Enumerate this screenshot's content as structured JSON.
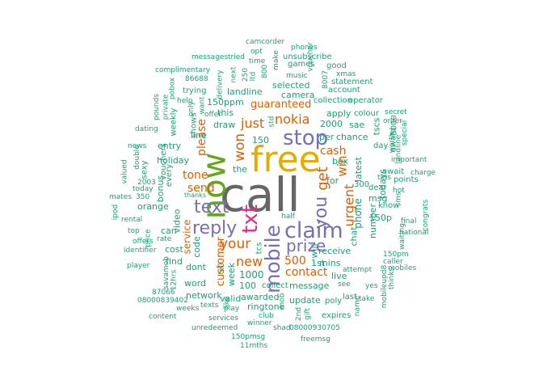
{
  "palette": {
    "xs": "#1b9e77",
    "sm": "#d95f02",
    "md": "#7570b3",
    "lg": "#e7298a",
    "xl": "#66a61e",
    "xxl": "#e6ab02",
    "top": "#666666"
  },
  "words": [
    {
      "text": "call",
      "tier": "top"
    },
    {
      "text": "free",
      "tier": "xxl"
    },
    {
      "text": "now",
      "tier": "xl"
    },
    {
      "text": "txt",
      "tier": "lg"
    },
    {
      "text": "claim",
      "tier": "md"
    },
    {
      "text": "mobile",
      "tier": "md"
    },
    {
      "text": "stop",
      "tier": "md"
    },
    {
      "text": "reply",
      "tier": "md"
    },
    {
      "text": "text",
      "tier": "md"
    },
    {
      "text": "prize",
      "tier": "md"
    },
    {
      "text": "you",
      "tier": "md"
    },
    {
      "text": "get",
      "tier": "sm"
    },
    {
      "text": "your",
      "tier": "sm"
    },
    {
      "text": "won",
      "tier": "sm"
    },
    {
      "text": "nokia",
      "tier": "sm"
    },
    {
      "text": "just",
      "tier": "sm"
    },
    {
      "text": "urgent",
      "tier": "sm"
    },
    {
      "text": "new",
      "tier": "sm"
    },
    {
      "text": "win",
      "tier": "sm"
    },
    {
      "text": "cash",
      "tier": "sm"
    },
    {
      "text": "send",
      "tier": "sm"
    },
    {
      "text": "tone",
      "tier": "sm"
    },
    {
      "text": "please",
      "tier": "sm"
    },
    {
      "text": "customer",
      "tier": "sm"
    },
    {
      "text": "contact",
      "tier": "sm"
    },
    {
      "text": "500",
      "tier": "sm"
    },
    {
      "text": "guaranteed",
      "tier": "sm"
    },
    {
      "text": "service",
      "tier": "sm"
    },
    {
      "text": "1000",
      "tier": "xs"
    },
    {
      "text": "100",
      "tier": "xs"
    },
    {
      "text": "message",
      "tier": "xs"
    },
    {
      "text": "phone",
      "tier": "xs"
    },
    {
      "text": "chat",
      "tier": "xs"
    },
    {
      "text": "latest",
      "tier": "xs"
    },
    {
      "text": "draw",
      "tier": "xs"
    },
    {
      "text": "week",
      "tier": "xs"
    },
    {
      "text": "150",
      "tier": "xs"
    },
    {
      "text": "2000",
      "tier": "xs"
    },
    {
      "text": "per",
      "tier": "xs"
    },
    {
      "text": "apply",
      "tier": "xs"
    },
    {
      "text": "camera",
      "tier": "xs"
    },
    {
      "text": "selected",
      "tier": "xs"
    },
    {
      "text": "landline",
      "tier": "xs"
    },
    {
      "text": "150ppm",
      "tier": "xs"
    },
    {
      "text": "this",
      "tier": "xs"
    },
    {
      "text": "line",
      "tier": "xs"
    },
    {
      "text": "shows",
      "tier": "xs"
    },
    {
      "text": "holiday",
      "tier": "xs"
    },
    {
      "text": "entry",
      "tier": "xs"
    },
    {
      "text": "bonus",
      "tier": "xs"
    },
    {
      "text": "orange",
      "tier": "xs"
    },
    {
      "text": "video",
      "tier": "xs"
    },
    {
      "text": "can",
      "tier": "xs"
    },
    {
      "text": "cost",
      "tier": "xs"
    },
    {
      "text": "find",
      "tier": "xs"
    },
    {
      "text": "code",
      "tier": "xs"
    },
    {
      "text": "dont",
      "tier": "xs"
    },
    {
      "text": "word",
      "tier": "xs"
    },
    {
      "text": "network",
      "tier": "xs"
    },
    {
      "text": "valid",
      "tier": "xs"
    },
    {
      "text": "awarded",
      "tier": "xs"
    },
    {
      "text": "collect",
      "tier": "xs"
    },
    {
      "text": "ringtone",
      "tier": "xs"
    },
    {
      "text": "update",
      "tier": "xs"
    },
    {
      "text": "mins",
      "tier": "xs"
    },
    {
      "text": "receive",
      "tier": "xs"
    },
    {
      "text": "1st",
      "tier": "xs"
    },
    {
      "text": "live",
      "tier": "xs"
    },
    {
      "text": "tcs",
      "tier": "xs"
    },
    {
      "text": "the",
      "tier": "xs"
    },
    {
      "text": "msg",
      "tier": "xs"
    },
    {
      "text": "box",
      "tier": "xs"
    },
    {
      "text": "chance",
      "tier": "xs"
    },
    {
      "text": "sae",
      "tier": "xs"
    },
    {
      "text": "day",
      "tier": "xs"
    },
    {
      "text": "150p",
      "tier": "xs"
    },
    {
      "text": "know",
      "tier": "xs"
    },
    {
      "text": "todays",
      "tier": "xs"
    },
    {
      "text": "award",
      "tier": "xs"
    },
    {
      "text": "5000",
      "tier": "xs"
    },
    {
      "text": "for",
      "tier": "xs"
    },
    {
      "text": "will",
      "tier": "xs"
    },
    {
      "text": "number",
      "tier": "xs"
    },
    {
      "text": "tscs",
      "tier": "xs"
    },
    {
      "text": "await",
      "tier": "xs"
    },
    {
      "text": "points",
      "tier": "xs"
    },
    {
      "text": "dear",
      "tier": "xs"
    },
    {
      "text": "300",
      "tier": "xs"
    },
    {
      "text": "statement",
      "tier": "xs"
    },
    {
      "text": "xmas",
      "tier": "xs"
    },
    {
      "text": "collection",
      "tier": "xs"
    },
    {
      "text": "operator",
      "tier": "xs"
    },
    {
      "text": "colour",
      "tier": "xs"
    },
    {
      "text": "order",
      "tier": "xs"
    },
    {
      "text": "secret",
      "tier": "xs"
    },
    {
      "text": "important",
      "tier": "xs"
    },
    {
      "text": "account",
      "tier": "xs"
    },
    {
      "text": "good",
      "tier": "xs"
    },
    {
      "text": "phones",
      "tier": "xs"
    },
    {
      "text": "camcorder",
      "tier": "xs"
    },
    {
      "text": "unsubscribe",
      "tier": "xs"
    },
    {
      "text": "games",
      "tier": "xs"
    },
    {
      "text": "voucher",
      "tier": "xs"
    },
    {
      "text": "opt",
      "tier": "xs"
    },
    {
      "text": "time",
      "tier": "xs"
    },
    {
      "text": "tried",
      "tier": "xs"
    },
    {
      "text": "messages",
      "tier": "xs"
    },
    {
      "text": "complimentary",
      "tier": "xs"
    },
    {
      "text": "86688",
      "tier": "xs"
    },
    {
      "text": "trying",
      "tier": "xs"
    },
    {
      "text": "help",
      "tier": "xs"
    },
    {
      "text": "weekly",
      "tier": "xs"
    },
    {
      "text": "private",
      "tier": "xs"
    },
    {
      "text": "pobox",
      "tier": "xs"
    },
    {
      "text": "pounds",
      "tier": "xs"
    },
    {
      "text": "dating",
      "tier": "xs"
    },
    {
      "text": "news",
      "tier": "xs"
    },
    {
      "text": "double",
      "tier": "xs"
    },
    {
      "text": "sexy",
      "tier": "xs"
    },
    {
      "text": "vouchers",
      "tier": "xs"
    },
    {
      "text": "every",
      "tier": "xs"
    },
    {
      "text": "2003",
      "tier": "xs"
    },
    {
      "text": "today",
      "tier": "xs"
    },
    {
      "text": "valued",
      "tier": "xs"
    },
    {
      "text": "mates",
      "tier": "xs"
    },
    {
      "text": "350",
      "tier": "xs"
    },
    {
      "text": "thanks",
      "tier": "xs"
    },
    {
      "text": "rental",
      "tier": "xs"
    },
    {
      "text": "top",
      "tier": "xs"
    },
    {
      "text": "price",
      "tier": "xs"
    },
    {
      "text": "rate",
      "tier": "xs"
    },
    {
      "text": "offers",
      "tier": "xs"
    },
    {
      "text": "identifier",
      "tier": "xs"
    },
    {
      "text": "player",
      "tier": "xs"
    },
    {
      "text": "savamob",
      "tier": "xs"
    },
    {
      "text": "12hrs",
      "tier": "xs"
    },
    {
      "text": "87066",
      "tier": "xs"
    },
    {
      "text": "08000839402",
      "tier": "xs"
    },
    {
      "text": "content",
      "tier": "xs"
    },
    {
      "text": "weeks",
      "tier": "xs"
    },
    {
      "text": "texts",
      "tier": "xs"
    },
    {
      "text": "play",
      "tier": "xs"
    },
    {
      "text": "services",
      "tier": "xs"
    },
    {
      "text": "unredeemed",
      "tier": "xs"
    },
    {
      "text": "150pmsg",
      "tier": "xs"
    },
    {
      "text": "11mths",
      "tier": "xs"
    },
    {
      "text": "winner",
      "tier": "xs"
    },
    {
      "text": "club",
      "tier": "xs"
    },
    {
      "text": "shad",
      "tier": "xs"
    },
    {
      "text": "08000930705",
      "tier": "xs"
    },
    {
      "text": "freemsg",
      "tier": "xs"
    },
    {
      "text": "expires",
      "tier": "xs"
    },
    {
      "text": "poly",
      "tier": "xs"
    },
    {
      "text": "last",
      "tier": "xs"
    },
    {
      "text": "see",
      "tier": "xs"
    },
    {
      "text": "attempt",
      "tier": "xs"
    },
    {
      "text": "take",
      "tier": "xs"
    },
    {
      "text": "mobiles",
      "tier": "xs"
    },
    {
      "text": "150pm",
      "tier": "xs"
    },
    {
      "text": "caller",
      "tier": "xs"
    },
    {
      "text": "national",
      "tier": "xs"
    },
    {
      "text": "final",
      "tier": "xs"
    },
    {
      "text": "congrats",
      "tier": "xs"
    },
    {
      "text": "charge",
      "tier": "xs"
    },
    {
      "text": "special",
      "tier": "xs"
    },
    {
      "text": "worth",
      "tier": "xs"
    },
    {
      "text": "sms",
      "tier": "xs"
    },
    {
      "text": "hot",
      "tier": "xs"
    },
    {
      "text": "txts",
      "tier": "xs"
    },
    {
      "text": "landline",
      "tier": "xs"
    },
    {
      "text": "mobileupd8",
      "tier": "xs"
    },
    {
      "text": "thinks",
      "tier": "xs"
    },
    {
      "text": "waiting",
      "tier": "xs"
    },
    {
      "text": "yes",
      "tier": "xs"
    },
    {
      "text": "name",
      "tier": "xs"
    },
    {
      "text": "half",
      "tier": "xs"
    },
    {
      "text": "2nd",
      "tier": "xs"
    },
    {
      "text": "gift",
      "tier": "xs"
    },
    {
      "text": "mob",
      "tier": "xs"
    },
    {
      "text": "tell",
      "tier": "xs"
    },
    {
      "text": "want",
      "tier": "xs"
    },
    {
      "text": "only",
      "tier": "xs"
    },
    {
      "text": "offer",
      "tier": "xs"
    },
    {
      "text": "delivery",
      "tier": "xs"
    },
    {
      "text": "next",
      "tier": "xs"
    },
    {
      "text": "250",
      "tier": "xs"
    },
    {
      "text": "ltd",
      "tier": "xs"
    },
    {
      "text": "800",
      "tier": "xs"
    },
    {
      "text": "make",
      "tier": "xs"
    },
    {
      "text": "music",
      "tier": "xs"
    },
    {
      "text": "8007",
      "tier": "xs"
    },
    {
      "text": "std",
      "tier": "xs"
    },
    {
      "text": "ipod",
      "tier": "xs"
    },
    {
      "text": "like",
      "tier": "xs"
    }
  ]
}
